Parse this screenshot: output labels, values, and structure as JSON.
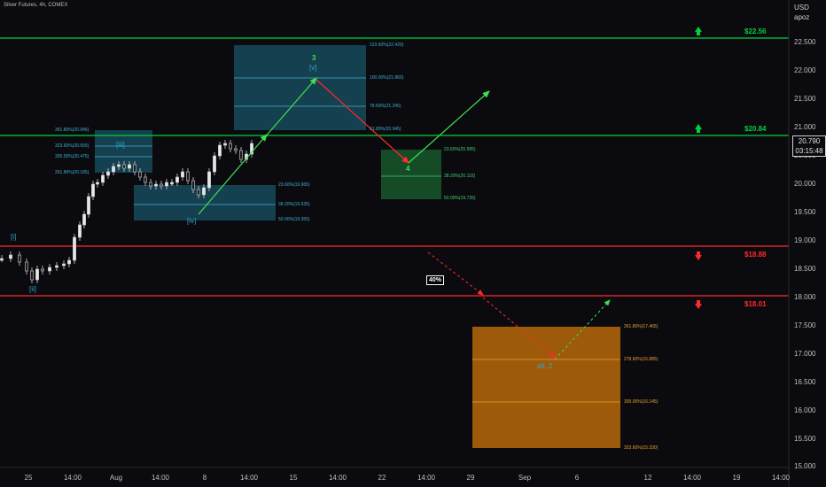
{
  "header": {
    "title": "Silver Futures, 4h, COMEX",
    "currency": "USD",
    "scale_mode": "apoz"
  },
  "price": {
    "current": "20.790",
    "countdown": "03:15:48"
  },
  "y_axis_labels": [
    "22.500",
    "22.000",
    "21.500",
    "21.000",
    "20.500",
    "20.000",
    "19.500",
    "19.000",
    "18.500",
    "18.000",
    "17.500",
    "17.000",
    "16.500",
    "16.000",
    "15.500",
    "15.000"
  ],
  "x_axis_labels": [
    "25",
    "14:00",
    "Aug",
    "14:00",
    "8",
    "14:00",
    "15",
    "14:00",
    "22",
    "14:00",
    "29",
    "Sep",
    "6",
    "12",
    "14:00",
    "19",
    "14:00"
  ],
  "levels": [
    {
      "label": "$22.56",
      "color": "#00d13b",
      "direction": "up"
    },
    {
      "label": "$20.84",
      "color": "#00d13b",
      "direction": "up"
    },
    {
      "label": "$18.88",
      "color": "#ff2a2a",
      "direction": "down"
    },
    {
      "label": "$18.01",
      "color": "#ff2a2a",
      "direction": "down"
    }
  ],
  "fib_labels": {
    "box_v": [
      "123.60%(22.420)",
      "100.00%(21.860)",
      "78.60%(21.345)",
      "61.80%(20.945)"
    ],
    "box_iii": [
      "361.80%(20.945)",
      "323.60%(20.655)",
      "300.00%(20.475)",
      "261.80%(20.185)"
    ],
    "box_iv": [
      "23.60%(19.965)",
      "38.20%(19.635)",
      "50.00%(19.355)"
    ],
    "box_4": [
      "23.60%(20.585)",
      "38.20%(20.115)",
      "50.00%(19.735)"
    ],
    "box_2": [
      "261.80%(17.465)",
      "278.60%(16.885)",
      "300.00%(16.145)",
      "323.60%(15.330)"
    ]
  },
  "waves": {
    "i": "[i]",
    "ii": "[ii]",
    "iii": "[iii]",
    "iv": "[iv]",
    "v": "[v]",
    "three": "3",
    "four": "4",
    "alt2": "alt. 2"
  },
  "probability": "40%",
  "colors": {
    "bg": "#0b0b0f",
    "green": "#00d13b",
    "red": "#ff2a2a",
    "teal": "#2aa7c9",
    "orange": "#e08a12"
  }
}
